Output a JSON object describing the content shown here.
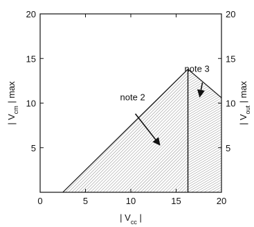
{
  "chart_data": {
    "type": "area",
    "xlim": [
      0,
      20
    ],
    "ylim": [
      0,
      20
    ],
    "xticks": [
      0,
      5,
      10,
      15,
      20
    ],
    "yticks_left": [
      5,
      10,
      15,
      20
    ],
    "yticks_right": [
      5,
      10,
      15,
      20
    ],
    "xlabel": {
      "pre": "| V",
      "sub": "cc",
      "post": " |"
    },
    "ylabel_left": {
      "pre": "| V",
      "sub": "cm",
      "post": " | max"
    },
    "ylabel_right": {
      "pre": "| V",
      "sub": "out",
      "post": " | max"
    },
    "grid": false,
    "regions": [
      {
        "id": "cm-region",
        "points": [
          [
            2.5,
            0
          ],
          [
            16.3,
            13.8
          ],
          [
            16.3,
            0
          ]
        ]
      },
      {
        "id": "out-region",
        "points": [
          [
            16.3,
            0
          ],
          [
            16.3,
            13.8
          ],
          [
            20,
            10.6
          ],
          [
            20,
            0
          ]
        ]
      }
    ],
    "annotations": [
      {
        "text": "note 2",
        "text_at": [
          10.2,
          10.3
        ],
        "arrow_from": [
          10.5,
          8.8
        ],
        "arrow_to": [
          13.2,
          5.3
        ]
      },
      {
        "text": "note 3",
        "text_at": [
          17.3,
          13.5
        ],
        "arrow_from": [
          17.9,
          12.3
        ],
        "arrow_to": [
          17.6,
          10.7
        ]
      }
    ]
  }
}
